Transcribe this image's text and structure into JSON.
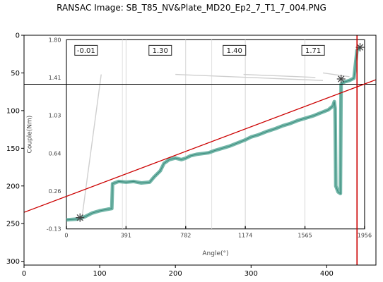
{
  "figure": {
    "title": "RANSAC Image: SB_T85_NV&Plate_MD20_Ep2_7_T1_7_004.PNG"
  },
  "chart_data": {
    "type": "image-with-line-overlay",
    "image_extent": {
      "x": [
        0,
        465
      ],
      "y": [
        0,
        305
      ]
    },
    "x_axis": {
      "ticks": [
        0,
        100,
        200,
        300,
        400
      ],
      "labels": [
        "0",
        "100",
        "200",
        "300",
        "400"
      ]
    },
    "y_axis": {
      "ticks": [
        0,
        50,
        100,
        150,
        200,
        250,
        300
      ],
      "labels": [
        "0",
        "50",
        "100",
        "150",
        "200",
        "250",
        "300"
      ],
      "inverted": true
    },
    "overlays": {
      "horizontal_line": {
        "y": 65,
        "color": "#000000"
      },
      "ransac_line": {
        "x": [
          0,
          465
        ],
        "y": [
          235,
          59
        ],
        "color": "#cc0000"
      },
      "vertical_line": {
        "x": 440,
        "y": [
          0,
          305
        ],
        "color": "#cc0000"
      }
    },
    "embedded_plot": {
      "ylabel": "Couple(Nm)",
      "xlabel": "Angle(°)",
      "y_ticks": [
        "1.80",
        "1.41",
        "1.03",
        "0.64",
        "0.26",
        "-0.13"
      ],
      "x_ticks": [
        "0",
        "391",
        "782",
        "1174",
        "1565",
        "1956"
      ],
      "annotation_boxes": [
        "-0.01",
        "1.30",
        "1.40",
        "1.71"
      ],
      "curve_color": "#5aaa9a"
    }
  }
}
